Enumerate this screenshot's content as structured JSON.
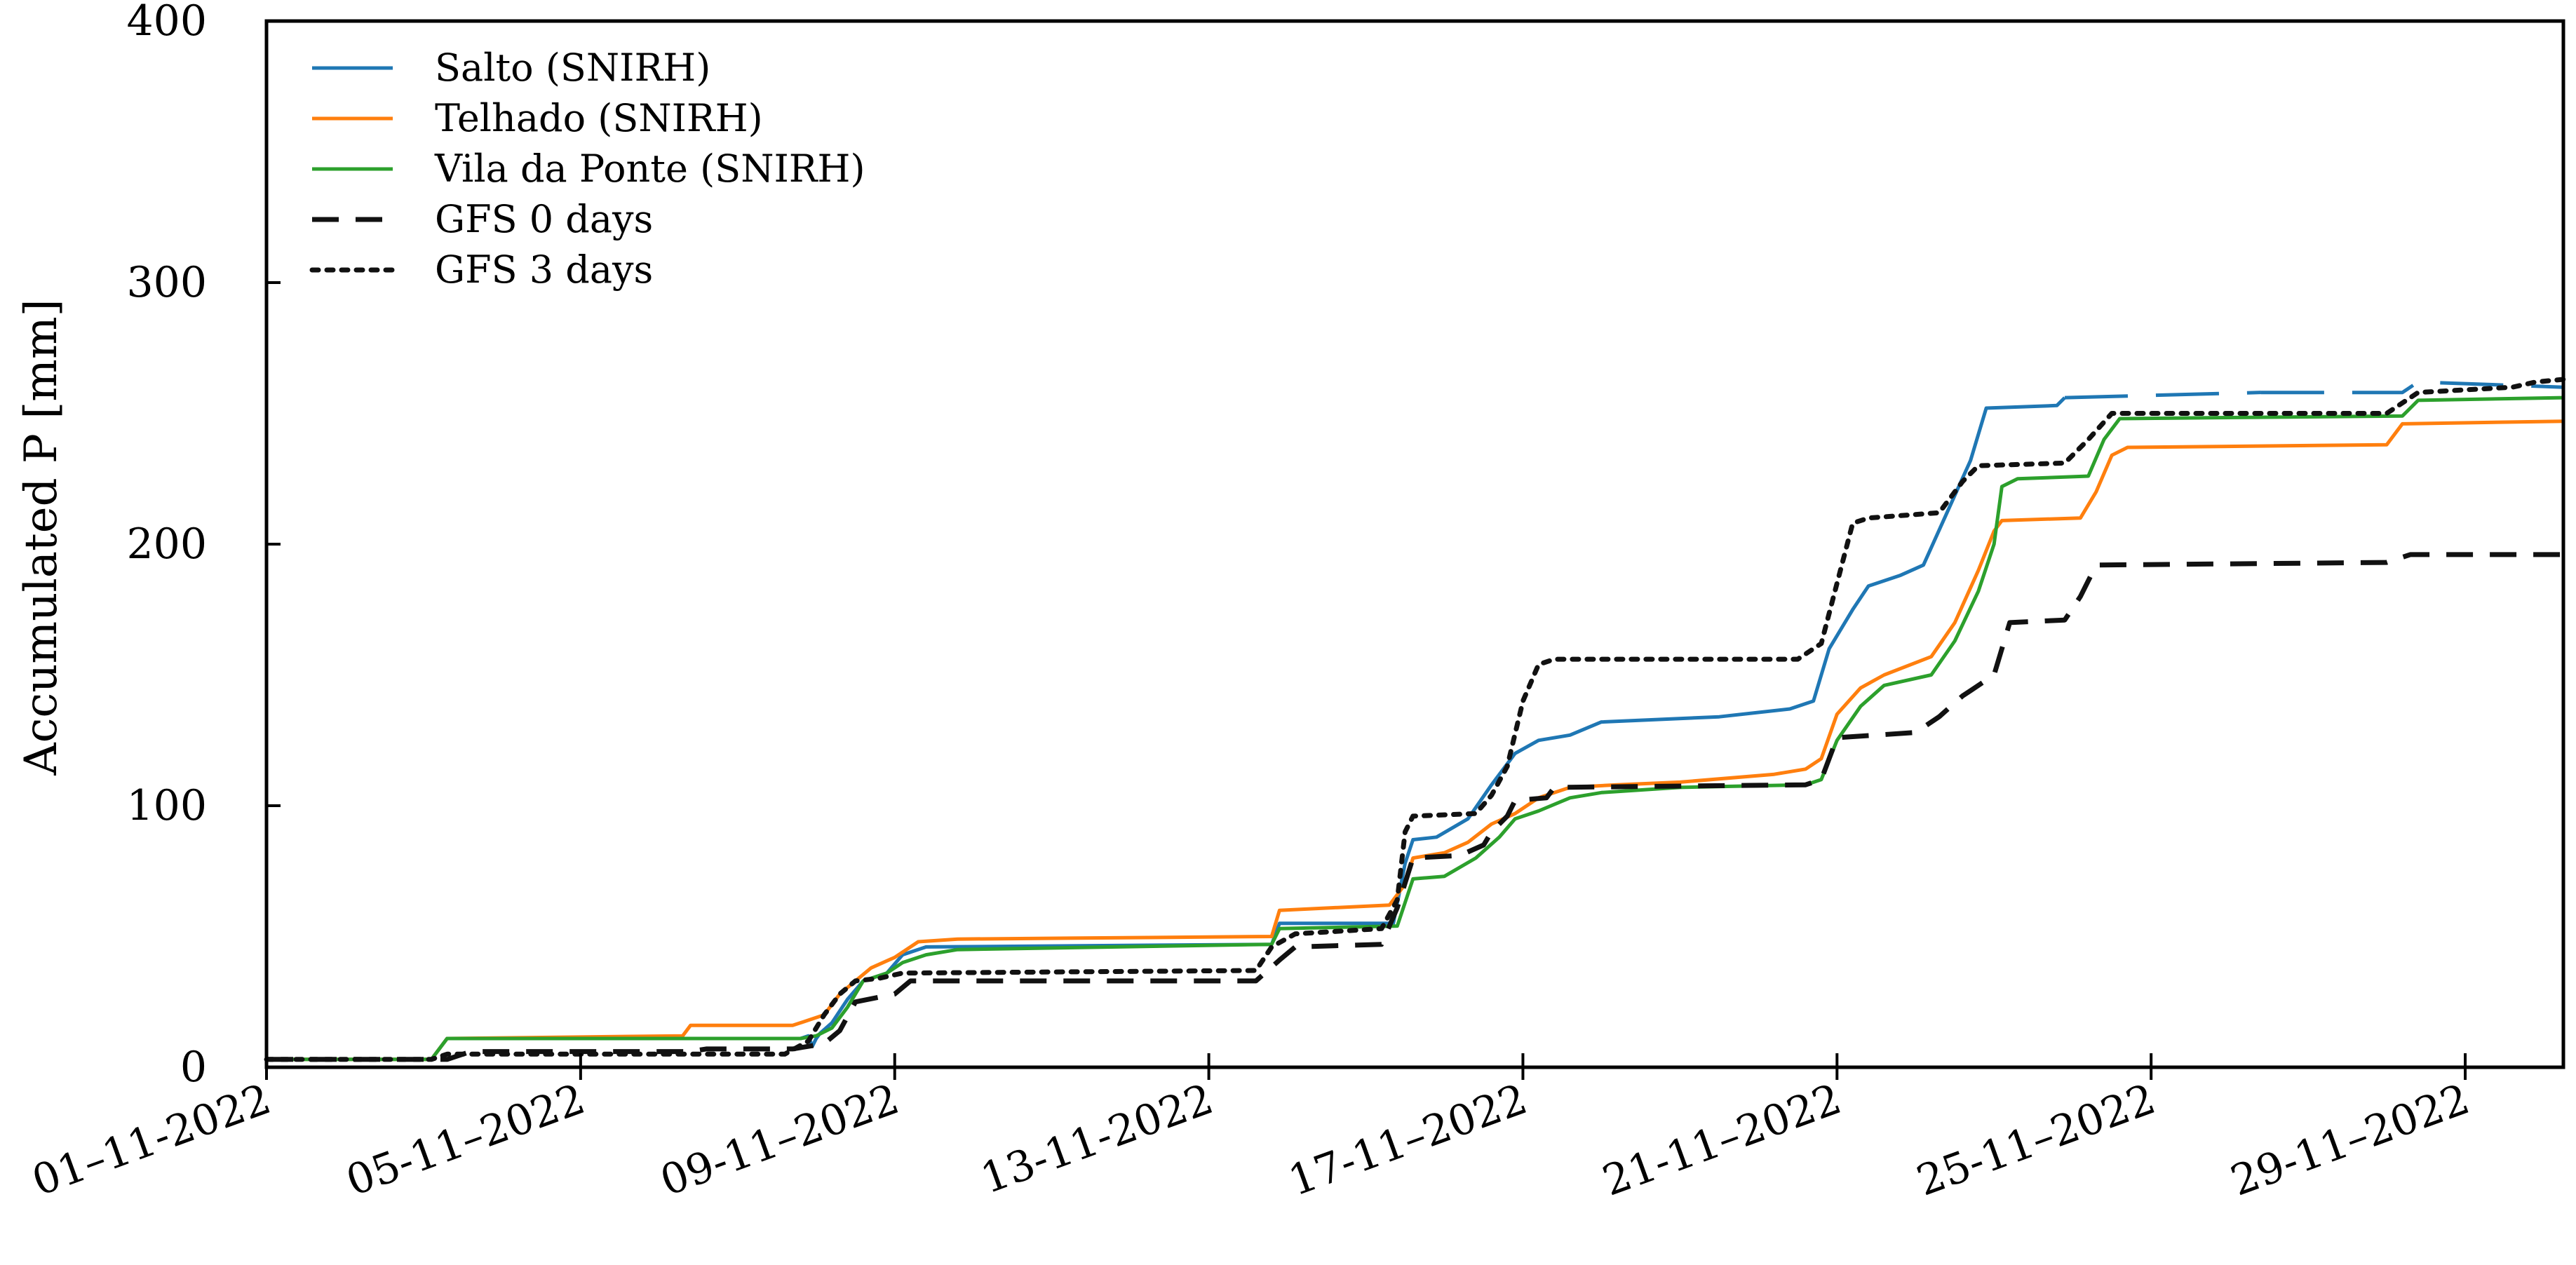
{
  "chart_data": {
    "type": "line",
    "title": "",
    "xlabel": "",
    "ylabel": "Accumulated P [mm]",
    "xlim": [
      0,
      29.25
    ],
    "ylim": [
      0,
      400
    ],
    "grid": false,
    "legend_position": "top-left",
    "x_unit": "days since 01-11-2022",
    "y_ticks": [
      0,
      100,
      200,
      300,
      400
    ],
    "x_ticks": [
      {
        "x": 0,
        "label": "01–11-2022"
      },
      {
        "x": 4,
        "label": "05-11–2022"
      },
      {
        "x": 8,
        "label": "09-11–2022"
      },
      {
        "x": 12,
        "label": "13-11-2022"
      },
      {
        "x": 16,
        "label": "17-11–2022"
      },
      {
        "x": 20,
        "label": "21-11–2022"
      },
      {
        "x": 24,
        "label": "25-11–2022"
      },
      {
        "x": 28,
        "label": "29-11–2022"
      }
    ],
    "series": [
      {
        "name": "Salto (SNIRH)",
        "color": "#1f77b4",
        "style": "solid",
        "points": [
          [
            0,
            3
          ],
          [
            2.1,
            3
          ],
          [
            2.3,
            11
          ],
          [
            6.8,
            11
          ],
          [
            6.9,
            12
          ],
          [
            6.95,
            8
          ],
          [
            7,
            11
          ],
          [
            7.05,
            13
          ],
          [
            7.2,
            17
          ],
          [
            7.4,
            26
          ],
          [
            7.6,
            33
          ],
          [
            7.9,
            36
          ],
          [
            8.1,
            43
          ],
          [
            8.4,
            46
          ],
          [
            12.8,
            47
          ],
          [
            12.9,
            55
          ],
          [
            14.35,
            55
          ],
          [
            14.5,
            78
          ],
          [
            14.6,
            87
          ],
          [
            14.9,
            88
          ],
          [
            15.3,
            95
          ],
          [
            15.6,
            108
          ],
          [
            15.9,
            120
          ],
          [
            16.2,
            125
          ],
          [
            16.6,
            127
          ],
          [
            17.0,
            132
          ],
          [
            18.5,
            134
          ],
          [
            19.4,
            137
          ],
          [
            19.7,
            140
          ],
          [
            19.9,
            160
          ],
          [
            20.2,
            175
          ],
          [
            20.4,
            184
          ],
          [
            20.8,
            188
          ],
          [
            21.1,
            192
          ],
          [
            21.4,
            212
          ],
          [
            21.7,
            232
          ],
          [
            21.9,
            252
          ],
          [
            22.8,
            253
          ],
          [
            22.9,
            256
          ],
          [
            25.4,
            258
          ],
          [
            27.2,
            258
          ],
          [
            27.4,
            262
          ],
          [
            29.25,
            260
          ]
        ],
        "gaps_after_x": [
          22.9
        ]
      },
      {
        "name": "Telhado (SNIRH)",
        "color": "#ff7f0e",
        "style": "solid",
        "points": [
          [
            0,
            3
          ],
          [
            2.1,
            3
          ],
          [
            2.3,
            11
          ],
          [
            5.3,
            12
          ],
          [
            5.4,
            16
          ],
          [
            6.7,
            16
          ],
          [
            6.9,
            18
          ],
          [
            7.1,
            20
          ],
          [
            7.3,
            28
          ],
          [
            7.5,
            33
          ],
          [
            7.7,
            38
          ],
          [
            8.0,
            42
          ],
          [
            8.3,
            48
          ],
          [
            8.8,
            49
          ],
          [
            12.8,
            50
          ],
          [
            12.9,
            60
          ],
          [
            14.3,
            62
          ],
          [
            14.5,
            70
          ],
          [
            14.6,
            80
          ],
          [
            15.0,
            82
          ],
          [
            15.3,
            86
          ],
          [
            15.6,
            93
          ],
          [
            15.9,
            97
          ],
          [
            16.2,
            103
          ],
          [
            16.6,
            107
          ],
          [
            17.2,
            108
          ],
          [
            18.0,
            109
          ],
          [
            19.2,
            112
          ],
          [
            19.6,
            114
          ],
          [
            19.8,
            118
          ],
          [
            20.0,
            135
          ],
          [
            20.3,
            145
          ],
          [
            20.6,
            150
          ],
          [
            21.2,
            157
          ],
          [
            21.5,
            170
          ],
          [
            21.8,
            190
          ],
          [
            22.0,
            205
          ],
          [
            22.1,
            209
          ],
          [
            23.1,
            210
          ],
          [
            23.3,
            220
          ],
          [
            23.5,
            234
          ],
          [
            23.7,
            237
          ],
          [
            27.0,
            238
          ],
          [
            27.2,
            246
          ],
          [
            29.25,
            247
          ]
        ]
      },
      {
        "name": "Vila da Ponte (SNIRH)",
        "color": "#2ca02c",
        "style": "solid",
        "points": [
          [
            0,
            3
          ],
          [
            2.1,
            3
          ],
          [
            2.3,
            11
          ],
          [
            6.8,
            11
          ],
          [
            7.0,
            12
          ],
          [
            7.2,
            15
          ],
          [
            7.4,
            23
          ],
          [
            7.6,
            33
          ],
          [
            7.9,
            36
          ],
          [
            8.1,
            40
          ],
          [
            8.4,
            43
          ],
          [
            8.8,
            45
          ],
          [
            12.8,
            47
          ],
          [
            12.9,
            53
          ],
          [
            14.4,
            54
          ],
          [
            14.5,
            63
          ],
          [
            14.6,
            72
          ],
          [
            15.0,
            73
          ],
          [
            15.4,
            80
          ],
          [
            15.7,
            88
          ],
          [
            15.9,
            95
          ],
          [
            16.2,
            98
          ],
          [
            16.6,
            103
          ],
          [
            17.0,
            105
          ],
          [
            18.0,
            107
          ],
          [
            19.6,
            108
          ],
          [
            19.8,
            110
          ],
          [
            20.0,
            125
          ],
          [
            20.3,
            138
          ],
          [
            20.6,
            146
          ],
          [
            21.2,
            150
          ],
          [
            21.5,
            163
          ],
          [
            21.8,
            182
          ],
          [
            22.0,
            200
          ],
          [
            22.1,
            222
          ],
          [
            22.3,
            225
          ],
          [
            23.2,
            226
          ],
          [
            23.4,
            240
          ],
          [
            23.6,
            248
          ],
          [
            27.2,
            249
          ],
          [
            27.4,
            255
          ],
          [
            29.25,
            256
          ]
        ]
      },
      {
        "name": "GFS 0 days",
        "color": "#111111",
        "style": "dashed",
        "points": [
          [
            0,
            3
          ],
          [
            2.3,
            3
          ],
          [
            2.6,
            6
          ],
          [
            5.4,
            6
          ],
          [
            5.6,
            7
          ],
          [
            6.7,
            7
          ],
          [
            7.1,
            9
          ],
          [
            7.3,
            14
          ],
          [
            7.5,
            25
          ],
          [
            8.0,
            28
          ],
          [
            8.2,
            33
          ],
          [
            12.6,
            33
          ],
          [
            12.9,
            41
          ],
          [
            13.1,
            46
          ],
          [
            14.2,
            47
          ],
          [
            14.4,
            61
          ],
          [
            14.6,
            80
          ],
          [
            15.2,
            81
          ],
          [
            15.5,
            85
          ],
          [
            15.6,
            90
          ],
          [
            15.8,
            96
          ],
          [
            15.9,
            102
          ],
          [
            16.3,
            103
          ],
          [
            16.4,
            107
          ],
          [
            19.6,
            108
          ],
          [
            19.8,
            110
          ],
          [
            20.0,
            126
          ],
          [
            21.0,
            128
          ],
          [
            21.3,
            134
          ],
          [
            21.6,
            142
          ],
          [
            21.7,
            144
          ],
          [
            22.0,
            150
          ],
          [
            22.2,
            170
          ],
          [
            22.9,
            171
          ],
          [
            23.1,
            180
          ],
          [
            23.3,
            192
          ],
          [
            27.0,
            193
          ],
          [
            27.3,
            196
          ],
          [
            29.25,
            196
          ]
        ]
      },
      {
        "name": "GFS 3 days",
        "color": "#111111",
        "style": "dotted",
        "points": [
          [
            0,
            3
          ],
          [
            2.1,
            3
          ],
          [
            2.3,
            5
          ],
          [
            6.6,
            5
          ],
          [
            6.9,
            10
          ],
          [
            7.1,
            20
          ],
          [
            7.3,
            28
          ],
          [
            7.5,
            33
          ],
          [
            7.8,
            34
          ],
          [
            8.1,
            36
          ],
          [
            12.6,
            37
          ],
          [
            12.8,
            46
          ],
          [
            13.1,
            51
          ],
          [
            14.2,
            53
          ],
          [
            14.4,
            64
          ],
          [
            14.5,
            90
          ],
          [
            14.6,
            96
          ],
          [
            15.4,
            97
          ],
          [
            15.6,
            104
          ],
          [
            15.8,
            115
          ],
          [
            16.0,
            140
          ],
          [
            16.2,
            154
          ],
          [
            16.4,
            156
          ],
          [
            19.5,
            156
          ],
          [
            19.8,
            162
          ],
          [
            20.0,
            185
          ],
          [
            20.2,
            208
          ],
          [
            20.4,
            210
          ],
          [
            21.3,
            212
          ],
          [
            21.6,
            224
          ],
          [
            21.8,
            230
          ],
          [
            22.9,
            231
          ],
          [
            23.2,
            240
          ],
          [
            23.5,
            250
          ],
          [
            27.0,
            250
          ],
          [
            27.4,
            258
          ],
          [
            28.6,
            260
          ],
          [
            28.9,
            262
          ],
          [
            29.25,
            263
          ]
        ]
      }
    ]
  }
}
